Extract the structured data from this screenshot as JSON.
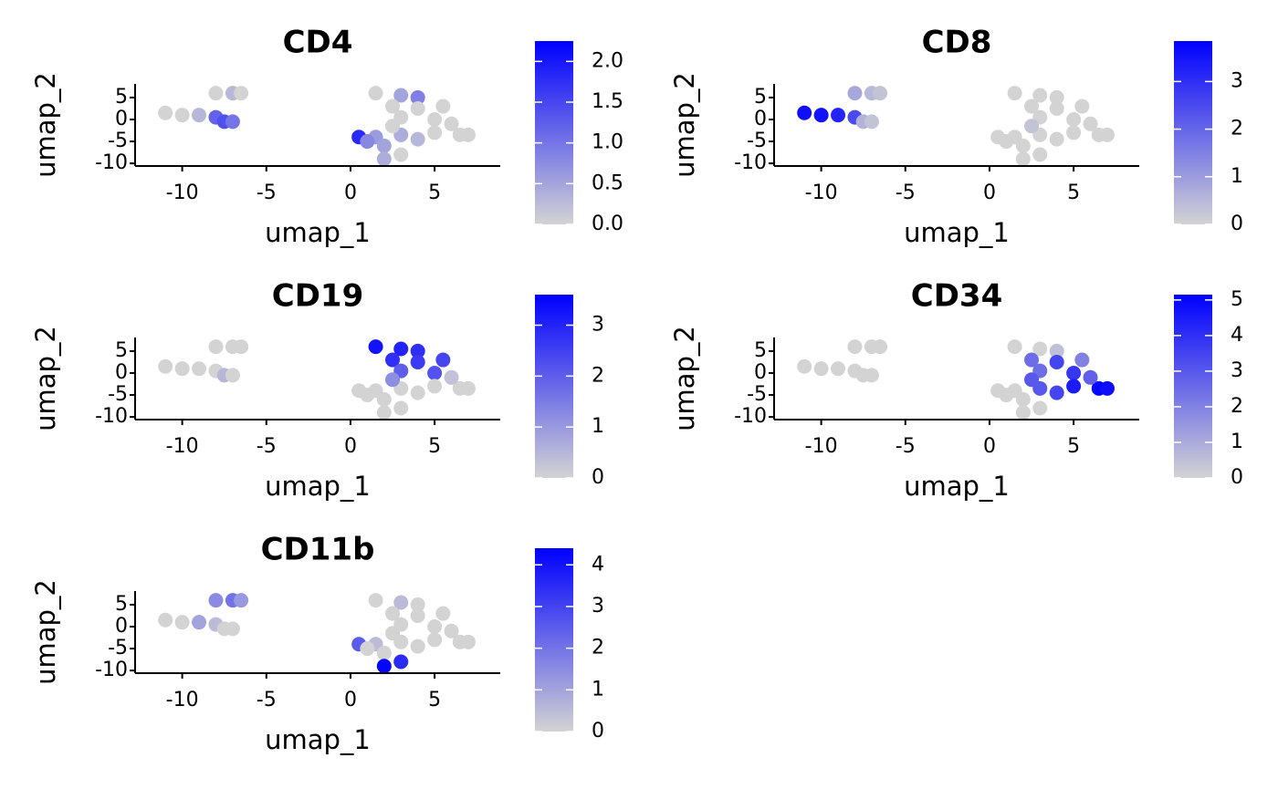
{
  "chart_data": [
    {
      "type": "scatter",
      "title": "CD4",
      "x_label": "umap_1",
      "y_label": "umap_2",
      "x": [
        -11,
        -10,
        -9,
        -8,
        -7.5,
        -7,
        -8,
        -7,
        -6.5,
        1.5,
        3,
        4,
        2.5,
        4,
        5.5,
        3,
        5,
        0.5,
        1.5,
        3,
        5,
        6.5,
        7,
        1,
        2,
        2,
        3,
        2.5,
        6,
        4
      ],
      "y": [
        1.5,
        1,
        1,
        0.5,
        -0.5,
        -0.5,
        6,
        6,
        6,
        6,
        5.5,
        5,
        3,
        2.5,
        3,
        0.5,
        0,
        -4,
        -4,
        -3.5,
        -3,
        -3.5,
        -3.5,
        -5,
        -6,
        -9,
        -8,
        -1.5,
        -1,
        -4.5
      ],
      "values": [
        0,
        0,
        0.3,
        1.2,
        1.4,
        1.0,
        0,
        0.3,
        0,
        0,
        0.5,
        0.9,
        0,
        0,
        0,
        0,
        0,
        1.8,
        0.6,
        0.4,
        0,
        0,
        0,
        0.8,
        0.5,
        0.4,
        0,
        0,
        0,
        0.3
      ],
      "xlim": [
        -12.8,
        8.9
      ],
      "ylim": [
        -10.6,
        8.1
      ],
      "xticks": [
        -10,
        -5,
        0,
        5
      ],
      "yticks": [
        -10,
        -5,
        0,
        5
      ],
      "color_lim": [
        0,
        2.25
      ],
      "color_ticks": [
        {
          "value": 0,
          "label": "0.0"
        },
        {
          "value": 0.5,
          "label": "0.5"
        },
        {
          "value": 1,
          "label": "1.0"
        },
        {
          "value": 1.5,
          "label": "1.5"
        },
        {
          "value": 2,
          "label": "2.0"
        }
      ],
      "low_color": "#d3d3d3",
      "high_color": "#0000ff"
    },
    {
      "type": "scatter",
      "title": "CD8",
      "x_label": "umap_1",
      "y_label": "umap_2",
      "x": [
        -11,
        -10,
        -9,
        -8,
        -7.5,
        -7,
        -8,
        -7,
        -6.5,
        1.5,
        3,
        4,
        2.5,
        4,
        5.5,
        3,
        5,
        0.5,
        1.5,
        3,
        5,
        6.5,
        7,
        1,
        2,
        2,
        3,
        2.5,
        6,
        4
      ],
      "y": [
        1.5,
        1,
        1,
        0.5,
        -0.5,
        -0.5,
        6,
        6,
        6,
        6,
        5.5,
        5,
        3,
        2.5,
        3,
        0.5,
        0,
        -4,
        -4,
        -3.5,
        -3,
        -3.5,
        -3.5,
        -5,
        -6,
        -9,
        -8,
        -1.5,
        -1,
        -4.5
      ],
      "values": [
        3.6,
        3.5,
        3.2,
        2.5,
        0.6,
        0.3,
        0.8,
        0.5,
        0.3,
        0,
        0,
        0,
        0,
        0,
        0,
        0,
        0,
        0,
        0,
        0,
        0,
        0,
        0,
        0,
        0,
        0,
        0,
        0.3,
        0,
        0
      ],
      "xlim": [
        -12.8,
        8.9
      ],
      "ylim": [
        -10.6,
        8.1
      ],
      "xticks": [
        -10,
        -5,
        0,
        5
      ],
      "yticks": [
        -10,
        -5,
        0,
        5
      ],
      "color_lim": [
        0,
        3.85
      ],
      "color_ticks": [
        0,
        1,
        2,
        3
      ],
      "low_color": "#d3d3d3",
      "high_color": "#0000ff"
    },
    {
      "type": "scatter",
      "title": "CD19",
      "x_label": "umap_1",
      "y_label": "umap_2",
      "x": [
        -11,
        -10,
        -9,
        -8,
        -7.5,
        -7,
        -8,
        -7,
        -6.5,
        1.5,
        3,
        4,
        2.5,
        4,
        5.5,
        3,
        5,
        0.5,
        1.5,
        3,
        5,
        6.5,
        7,
        1,
        2,
        2,
        3,
        2.5,
        6,
        4
      ],
      "y": [
        1.5,
        1,
        1,
        0.5,
        -0.5,
        -0.5,
        6,
        6,
        6,
        6,
        5.5,
        5,
        3,
        2.5,
        3,
        0.5,
        0,
        -4,
        -4,
        -3.5,
        -3,
        -3.5,
        -3.5,
        -5,
        -6,
        -9,
        -8,
        -1.5,
        -1,
        -4.5
      ],
      "values": [
        0,
        0,
        0,
        0,
        0.5,
        0,
        0,
        0,
        0,
        3.3,
        3.0,
        2.8,
        2.8,
        2.6,
        2.4,
        2.0,
        2.2,
        0,
        0,
        0,
        0,
        0,
        0,
        0,
        0,
        0,
        0,
        1.2,
        0.3,
        0
      ],
      "xlim": [
        -12.8,
        8.9
      ],
      "ylim": [
        -10.6,
        8.1
      ],
      "xticks": [
        -10,
        -5,
        0,
        5
      ],
      "yticks": [
        -10,
        -5,
        0,
        5
      ],
      "color_lim": [
        0,
        3.6
      ],
      "color_ticks": [
        0,
        1,
        2,
        3
      ],
      "low_color": "#d3d3d3",
      "high_color": "#0000ff"
    },
    {
      "type": "scatter",
      "title": "CD34",
      "x_label": "umap_1",
      "y_label": "umap_2",
      "x": [
        -11,
        -10,
        -9,
        -8,
        -7.5,
        -7,
        -8,
        -7,
        -6.5,
        1.5,
        3,
        4,
        2.5,
        4,
        5.5,
        3,
        5,
        0.5,
        1.5,
        3,
        5,
        6.5,
        7,
        1,
        2,
        2,
        3,
        2.5,
        6,
        4
      ],
      "y": [
        1.5,
        1,
        1,
        0.5,
        -0.5,
        -0.5,
        6,
        6,
        6,
        6,
        5.5,
        5,
        3,
        2.5,
        3,
        0.5,
        0,
        -4,
        -4,
        -3.5,
        -3,
        -3.5,
        -3.5,
        -5,
        -6,
        -9,
        -8,
        -1.5,
        -1,
        -4.5
      ],
      "values": [
        0,
        0,
        0,
        0,
        0,
        0,
        0,
        0,
        0,
        0,
        0,
        0.5,
        2.5,
        3.5,
        2.0,
        2.5,
        3.8,
        0,
        0,
        3.0,
        4.5,
        5.0,
        4.8,
        0,
        0,
        0,
        0,
        3.0,
        2.8,
        3.5
      ],
      "xlim": [
        -12.8,
        8.9
      ],
      "ylim": [
        -10.6,
        8.1
      ],
      "xticks": [
        -10,
        -5,
        0,
        5
      ],
      "yticks": [
        -10,
        -5,
        0,
        5
      ],
      "color_lim": [
        0,
        5.15
      ],
      "color_ticks": [
        0,
        1,
        2,
        3,
        4,
        5
      ],
      "low_color": "#d3d3d3",
      "high_color": "#0000ff"
    },
    {
      "type": "scatter",
      "title": "CD11b",
      "x_label": "umap_1",
      "y_label": "umap_2",
      "x": [
        -11,
        -10,
        -9,
        -8,
        -7.5,
        -7,
        -8,
        -7,
        -6.5,
        1.5,
        3,
        4,
        2.5,
        4,
        5.5,
        3,
        5,
        0.5,
        1.5,
        3,
        5,
        6.5,
        7,
        1,
        2,
        2,
        3,
        2.5,
        6,
        4
      ],
      "y": [
        1.5,
        1,
        1,
        0.5,
        -0.5,
        -0.5,
        6,
        6,
        6,
        6,
        5.5,
        5,
        3,
        2.5,
        3,
        0.5,
        0,
        -4,
        -4,
        -3.5,
        -3,
        -3.5,
        -3.5,
        -5,
        -6,
        -9,
        -8,
        -1.5,
        -1,
        -4.5
      ],
      "values": [
        0,
        0,
        1.0,
        0.5,
        0,
        0,
        1.5,
        2.0,
        1.2,
        0,
        0.5,
        0,
        0,
        0,
        0,
        0,
        0,
        2.5,
        0.5,
        0,
        0,
        0,
        0,
        0,
        0,
        4.3,
        3.5,
        0,
        0,
        0
      ],
      "xlim": [
        -12.8,
        8.9
      ],
      "ylim": [
        -10.6,
        8.1
      ],
      "xticks": [
        -10,
        -5,
        0,
        5
      ],
      "yticks": [
        -10,
        -5,
        0,
        5
      ],
      "color_lim": [
        0,
        4.4
      ],
      "color_ticks": [
        0,
        1,
        2,
        3,
        4
      ],
      "low_color": "#d3d3d3",
      "high_color": "#0000ff"
    }
  ]
}
